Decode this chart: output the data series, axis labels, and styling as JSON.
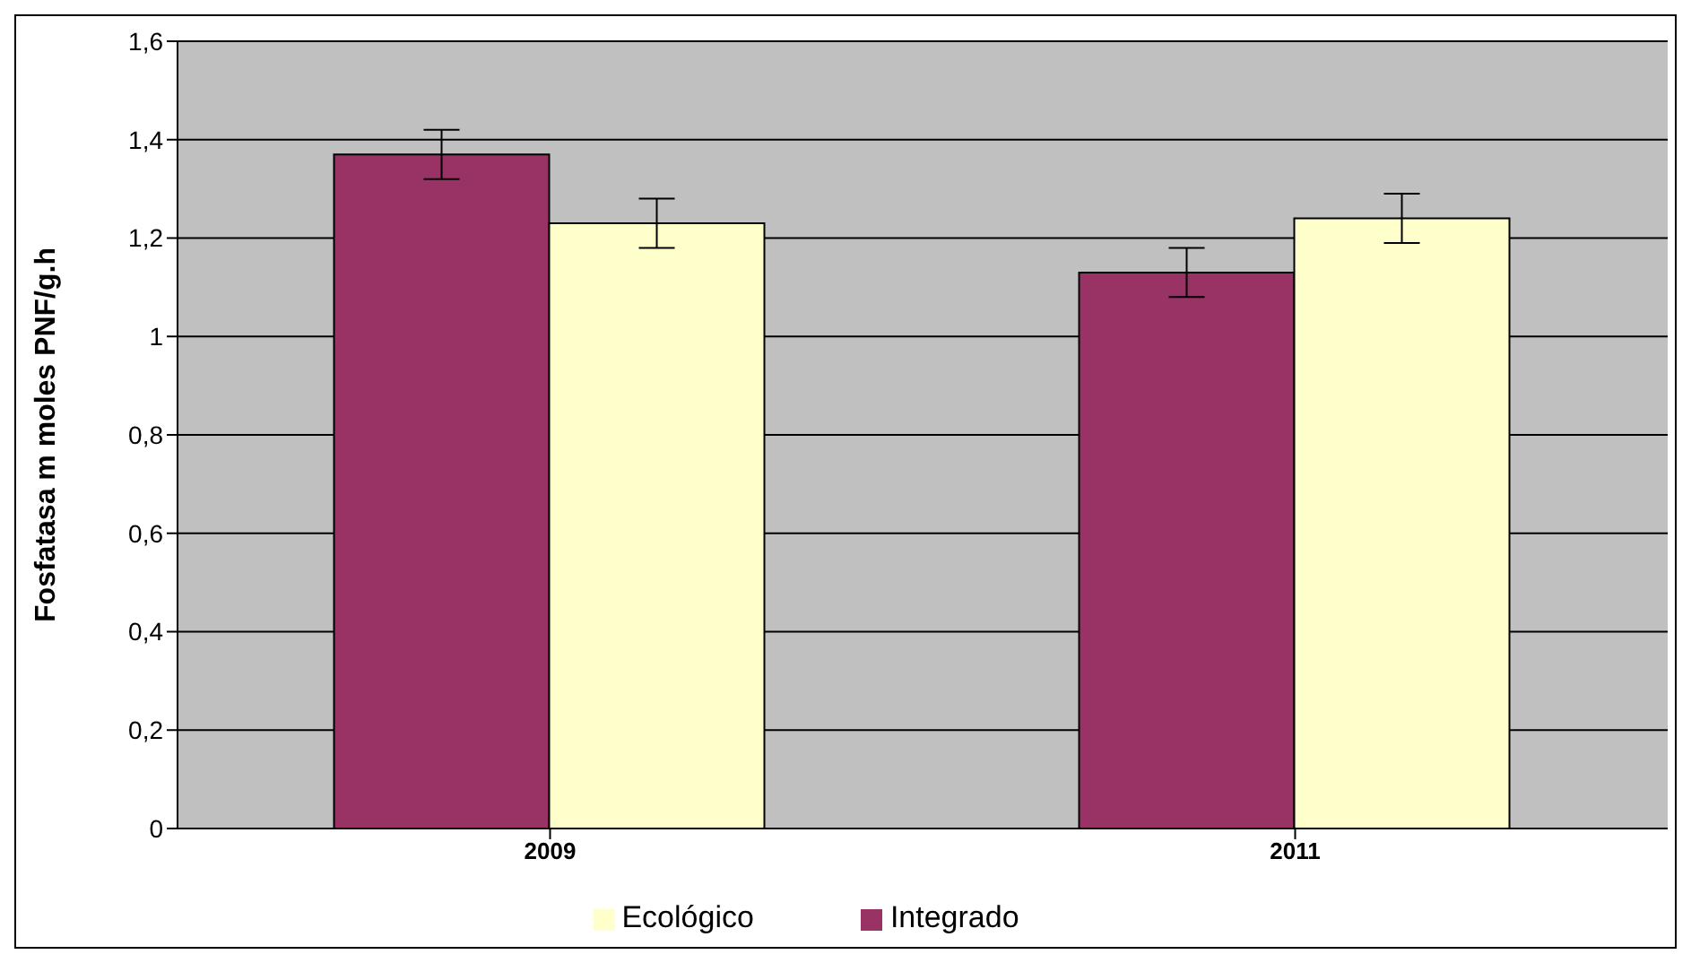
{
  "chart_data": {
    "type": "bar",
    "ylabel": "Fosfatasa m moles PNF/g.h",
    "categories": [
      "2009",
      "2011"
    ],
    "series": [
      {
        "name": "Integrado",
        "color": "#993366",
        "values": [
          1.37,
          1.13
        ],
        "errors": [
          0.05,
          0.05
        ]
      },
      {
        "name": "Ecológico",
        "color": "#ffffcc",
        "values": [
          1.23,
          1.24
        ],
        "errors": [
          0.05,
          0.05
        ]
      }
    ],
    "ylim": [
      0,
      1.6
    ],
    "yticks": [
      0,
      {
        "value": 0.2,
        "label": "0,2"
      },
      {
        "value": 0.4,
        "label": "0,4"
      },
      {
        "value": 0.6,
        "label": "0,6"
      },
      {
        "value": 0.8,
        "label": "0,8"
      },
      1,
      {
        "value": 1.2,
        "label": "1,2"
      },
      {
        "value": 1.4,
        "label": "1,4"
      },
      {
        "value": 1.6,
        "label": "1,6"
      }
    ],
    "grid": "y",
    "legend": "bottom"
  }
}
